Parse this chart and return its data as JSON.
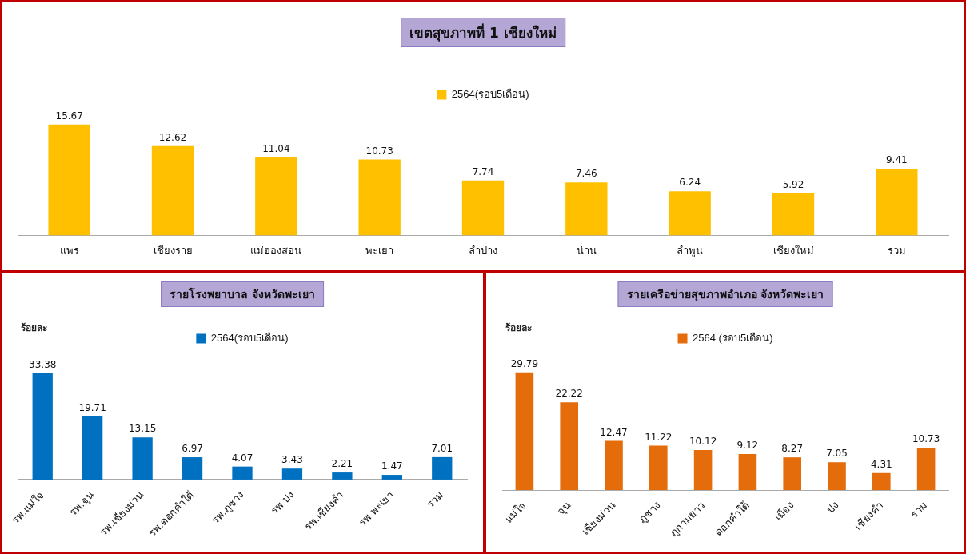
{
  "chart_data": [
    {
      "type": "bar",
      "title": "เขตสุขภาพที่ 1 เชียงใหม่",
      "categories": [
        "แพร่",
        "เชียงราย",
        "แม่ฮ่องสอน",
        "พะเยา",
        "ลำปาง",
        "น่าน",
        "ลำพูน",
        "เชียงใหม่",
        "รวม"
      ],
      "series": [
        {
          "name": "2564(รอบ5เดือน)",
          "color": "#ffc000",
          "values": [
            15.67,
            12.62,
            11.04,
            10.73,
            7.74,
            7.46,
            6.24,
            5.92,
            9.41
          ]
        }
      ],
      "data_labels": true,
      "legend": "top",
      "grid": false
    },
    {
      "type": "bar",
      "title": "รายโรงพยาบาล จังหวัดพะเยา",
      "ylabel": "ร้อยละ",
      "categories": [
        "รพ.แม่ใจ",
        "รพ.จุน",
        "รพ.เชียงม่วน",
        "รพ.ดอกคำใต้",
        "รพ.ภูซาง",
        "รพ.ปง",
        "รพ.เชียงคำ",
        "รพ.พะเยา",
        "รวม"
      ],
      "series": [
        {
          "name": "2564(รอบ5เดือน)",
          "color": "#0070c0",
          "values": [
            33.38,
            19.71,
            13.15,
            6.97,
            4.07,
            3.43,
            2.21,
            1.47,
            7.01
          ]
        }
      ],
      "data_labels": true,
      "legend": "top",
      "grid": false
    },
    {
      "type": "bar",
      "title": "รายเครือข่ายสุขภาพอำเภอ จังหวัดพะเยา",
      "ylabel": "ร้อยละ",
      "categories": [
        "แม่ใจ",
        "จุน",
        "เชียงม่วน",
        "ภูซาง",
        "ภูกามยาว",
        "ดอกคำใต้",
        "เมือง",
        "ปง",
        "เชียงคำ",
        "รวม"
      ],
      "series": [
        {
          "name": "2564 (รอบ5เดือน)",
          "color": "#e46c0a",
          "values": [
            29.79,
            22.22,
            12.47,
            11.22,
            10.12,
            9.12,
            8.27,
            7.05,
            4.31,
            10.73
          ]
        }
      ],
      "data_labels": true,
      "legend": "top",
      "grid": false
    }
  ]
}
